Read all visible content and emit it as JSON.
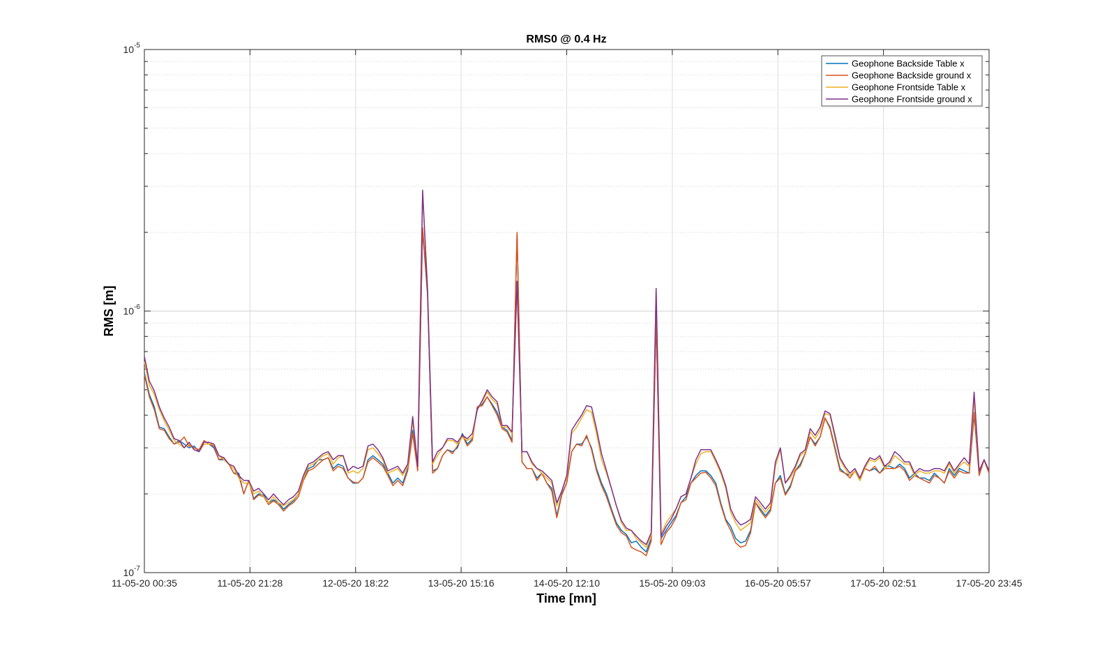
{
  "chart_data": {
    "type": "line",
    "title": "RMS0 @ 0.4 Hz",
    "xlabel": "Time [mn]",
    "ylabel": "RMS [m]",
    "yscale": "log",
    "ylim": [
      1e-07,
      1e-05
    ],
    "y_ticks": [
      {
        "value": 1e-07,
        "base": "10",
        "exp": "-7"
      },
      {
        "value": 1e-06,
        "base": "10",
        "exp": "-6"
      },
      {
        "value": 1e-05,
        "base": "10",
        "exp": "-5"
      }
    ],
    "x_ticks": [
      "11-05-20 00:35",
      "11-05-20 21:28",
      "12-05-20 18:22",
      "13-05-20 15:16",
      "14-05-20 12:10",
      "15-05-20 09:03",
      "16-05-20 05:57",
      "17-05-20 02:51",
      "17-05-20 23:45"
    ],
    "x_start": "2020-05-11T00:35",
    "x_end": "2020-05-17T23:45",
    "grid": true,
    "legend_position": "top-right",
    "series": [
      {
        "name": "Geophone Backside Table x",
        "color": "#0072BD",
        "values": [
          5.8,
          4.8,
          4.3,
          3.6,
          3.55,
          3.3,
          3.1,
          3.2,
          3.1,
          3.0,
          3.05,
          2.9,
          3.1,
          3.1,
          3.0,
          2.7,
          2.7,
          2.6,
          2.4,
          2.4,
          2.0,
          2.25,
          1.92,
          2.0,
          1.98,
          1.85,
          1.9,
          1.85,
          1.75,
          1.82,
          1.88,
          2.0,
          2.3,
          2.5,
          2.55,
          2.7,
          2.7,
          2.75,
          2.5,
          2.6,
          2.55,
          2.3,
          2.2,
          2.2,
          2.3,
          2.7,
          2.8,
          2.7,
          2.6,
          2.4,
          2.2,
          2.3,
          2.2,
          2.5,
          3.5,
          2.5,
          20.5,
          11.5,
          2.45,
          2.5,
          2.8,
          2.95,
          2.9,
          3.0,
          3.4,
          3.1,
          3.25,
          4.3,
          4.4,
          4.7,
          4.4,
          4.1,
          3.6,
          3.5,
          3.2,
          19.8,
          2.65,
          2.5,
          2.5,
          2.3,
          2.4,
          2.2,
          2.1,
          1.65,
          2.0,
          2.2,
          2.9,
          3.1,
          3.1,
          3.3,
          3.0,
          2.5,
          2.2,
          2.0,
          1.75,
          1.55,
          1.45,
          1.4,
          1.3,
          1.32,
          1.25,
          1.2,
          1.35,
          9.5,
          1.35,
          1.45,
          1.55,
          1.65,
          1.85,
          1.95,
          2.2,
          2.35,
          2.45,
          2.45,
          2.35,
          2.2,
          1.85,
          1.6,
          1.5,
          1.35,
          1.3,
          1.32,
          1.45,
          1.85,
          1.75,
          1.65,
          1.75,
          2.2,
          2.35,
          2.0,
          2.15,
          2.45,
          2.6,
          2.85,
          3.3,
          3.1,
          3.3,
          3.9,
          3.6,
          3.0,
          2.5,
          2.4,
          2.35,
          2.45,
          2.3,
          2.5,
          2.45,
          2.5,
          2.4,
          2.55,
          2.55,
          2.5,
          2.6,
          2.5,
          2.3,
          2.4,
          2.3,
          2.3,
          2.25,
          2.4,
          2.3,
          2.2,
          2.5,
          2.35,
          2.5,
          2.45,
          2.4,
          4.0,
          2.4,
          2.7,
          2.4
        ]
      },
      {
        "name": "Geophone Backside ground x",
        "color": "#D95319",
        "values": [
          5.7,
          4.7,
          4.2,
          3.55,
          3.5,
          3.25,
          3.1,
          3.15,
          3.3,
          3.05,
          3.0,
          2.95,
          3.2,
          3.1,
          3.05,
          2.7,
          2.75,
          2.6,
          2.4,
          2.35,
          2.0,
          2.25,
          1.9,
          1.98,
          1.95,
          1.82,
          1.88,
          1.82,
          1.72,
          1.8,
          1.85,
          1.95,
          2.25,
          2.45,
          2.5,
          2.6,
          2.7,
          2.75,
          2.45,
          2.55,
          2.5,
          2.3,
          2.22,
          2.2,
          2.3,
          2.65,
          2.75,
          2.65,
          2.55,
          2.35,
          2.15,
          2.25,
          2.15,
          2.45,
          3.4,
          2.45,
          20.8,
          11.8,
          2.4,
          2.5,
          2.8,
          2.95,
          2.85,
          3.05,
          3.35,
          3.05,
          3.2,
          4.3,
          4.35,
          4.7,
          4.35,
          4.0,
          3.55,
          3.45,
          3.15,
          20.0,
          2.65,
          2.5,
          2.5,
          2.25,
          2.4,
          2.2,
          2.05,
          1.62,
          1.98,
          2.2,
          2.9,
          3.1,
          3.05,
          3.35,
          2.95,
          2.45,
          2.15,
          1.95,
          1.72,
          1.52,
          1.42,
          1.38,
          1.25,
          1.22,
          1.2,
          1.16,
          1.32,
          9.3,
          1.28,
          1.42,
          1.5,
          1.62,
          1.85,
          1.9,
          2.2,
          2.3,
          2.4,
          2.42,
          2.3,
          2.15,
          1.82,
          1.58,
          1.45,
          1.3,
          1.25,
          1.27,
          1.42,
          1.85,
          1.72,
          1.62,
          1.72,
          2.2,
          2.3,
          1.98,
          2.12,
          2.45,
          2.55,
          2.85,
          3.3,
          3.05,
          3.3,
          3.9,
          3.55,
          2.95,
          2.45,
          2.4,
          2.3,
          2.45,
          2.25,
          2.5,
          2.45,
          2.55,
          2.4,
          2.5,
          2.5,
          2.5,
          2.55,
          2.45,
          2.25,
          2.35,
          2.3,
          2.25,
          2.2,
          2.35,
          2.3,
          2.2,
          2.45,
          2.3,
          2.45,
          2.4,
          2.4,
          4.1,
          2.35,
          2.7,
          2.4
        ]
      },
      {
        "name": "Geophone Frontside Table x",
        "color": "#EDB120",
        "values": [
          6.4,
          5.2,
          4.8,
          4.2,
          3.8,
          3.5,
          3.2,
          3.1,
          3.0,
          3.1,
          2.95,
          2.9,
          3.1,
          3.1,
          3.1,
          2.8,
          2.7,
          2.6,
          2.5,
          2.3,
          2.2,
          2.2,
          2.0,
          2.05,
          1.95,
          1.85,
          1.95,
          1.85,
          1.8,
          1.85,
          1.9,
          2.0,
          2.3,
          2.55,
          2.6,
          2.7,
          2.8,
          2.85,
          2.6,
          2.75,
          2.8,
          2.4,
          2.45,
          2.4,
          2.5,
          2.95,
          3.0,
          2.85,
          2.7,
          2.4,
          2.45,
          2.5,
          2.35,
          2.55,
          3.8,
          2.6,
          28.5,
          12.5,
          2.6,
          2.8,
          3.0,
          3.2,
          3.2,
          3.1,
          3.3,
          3.2,
          3.3,
          4.2,
          4.5,
          4.9,
          4.6,
          4.4,
          3.6,
          3.6,
          3.4,
          12.5,
          2.9,
          2.9,
          2.6,
          2.5,
          2.4,
          2.3,
          2.2,
          1.8,
          2.05,
          2.3,
          3.4,
          3.6,
          3.9,
          4.2,
          4.1,
          3.4,
          2.7,
          2.4,
          2.1,
          1.8,
          1.55,
          1.45,
          1.45,
          1.35,
          1.3,
          1.25,
          1.4,
          12.2,
          1.4,
          1.55,
          1.65,
          1.75,
          1.95,
          2.0,
          2.3,
          2.6,
          2.85,
          2.9,
          2.9,
          2.65,
          2.4,
          2.1,
          1.7,
          1.55,
          1.45,
          1.5,
          1.55,
          1.9,
          1.8,
          1.7,
          1.8,
          2.55,
          2.95,
          2.2,
          2.3,
          2.5,
          2.8,
          2.9,
          3.45,
          3.25,
          3.5,
          4.05,
          4.0,
          3.25,
          2.7,
          2.5,
          2.35,
          2.45,
          2.25,
          2.5,
          2.7,
          2.65,
          2.75,
          2.5,
          2.6,
          2.8,
          2.7,
          2.6,
          2.6,
          2.35,
          2.45,
          2.4,
          2.4,
          2.45,
          2.45,
          2.4,
          2.6,
          2.4,
          2.55,
          2.65,
          2.55,
          4.6,
          2.45,
          2.7,
          2.45
        ]
      },
      {
        "name": "Geophone Frontside ground x",
        "color": "#7E2F8E",
        "values": [
          6.7,
          5.4,
          4.95,
          4.3,
          3.9,
          3.6,
          3.25,
          3.2,
          3.0,
          3.15,
          2.95,
          2.9,
          3.15,
          3.15,
          3.1,
          2.8,
          2.75,
          2.6,
          2.55,
          2.35,
          2.25,
          2.25,
          2.05,
          2.1,
          2.0,
          1.9,
          2.0,
          1.9,
          1.82,
          1.9,
          1.95,
          2.05,
          2.35,
          2.6,
          2.65,
          2.75,
          2.85,
          2.9,
          2.7,
          2.8,
          2.8,
          2.45,
          2.55,
          2.5,
          2.55,
          3.05,
          3.1,
          2.95,
          2.75,
          2.45,
          2.5,
          2.55,
          2.4,
          2.6,
          3.95,
          2.55,
          29.0,
          11.8,
          2.65,
          2.9,
          3.0,
          3.25,
          3.25,
          3.15,
          3.35,
          3.25,
          3.4,
          4.2,
          4.55,
          5.0,
          4.7,
          4.5,
          3.65,
          3.65,
          3.45,
          13.0,
          2.9,
          2.9,
          2.65,
          2.5,
          2.45,
          2.35,
          2.25,
          1.85,
          2.05,
          2.35,
          3.5,
          3.75,
          4.0,
          4.35,
          4.3,
          3.55,
          2.85,
          2.45,
          2.1,
          1.8,
          1.58,
          1.48,
          1.45,
          1.38,
          1.32,
          1.28,
          1.42,
          12.2,
          1.38,
          1.5,
          1.6,
          1.75,
          1.95,
          2.0,
          2.3,
          2.7,
          2.95,
          2.95,
          2.95,
          2.7,
          2.45,
          2.15,
          1.75,
          1.6,
          1.52,
          1.55,
          1.6,
          1.95,
          1.85,
          1.75,
          1.85,
          2.65,
          3.0,
          2.2,
          2.35,
          2.55,
          2.85,
          2.95,
          3.55,
          3.35,
          3.6,
          4.15,
          4.05,
          3.35,
          2.75,
          2.55,
          2.4,
          2.5,
          2.3,
          2.55,
          2.75,
          2.7,
          2.8,
          2.55,
          2.65,
          2.9,
          2.8,
          2.65,
          2.65,
          2.4,
          2.5,
          2.45,
          2.45,
          2.5,
          2.5,
          2.45,
          2.65,
          2.45,
          2.6,
          2.75,
          2.6,
          4.9,
          2.45,
          2.7,
          2.45
        ]
      }
    ]
  }
}
